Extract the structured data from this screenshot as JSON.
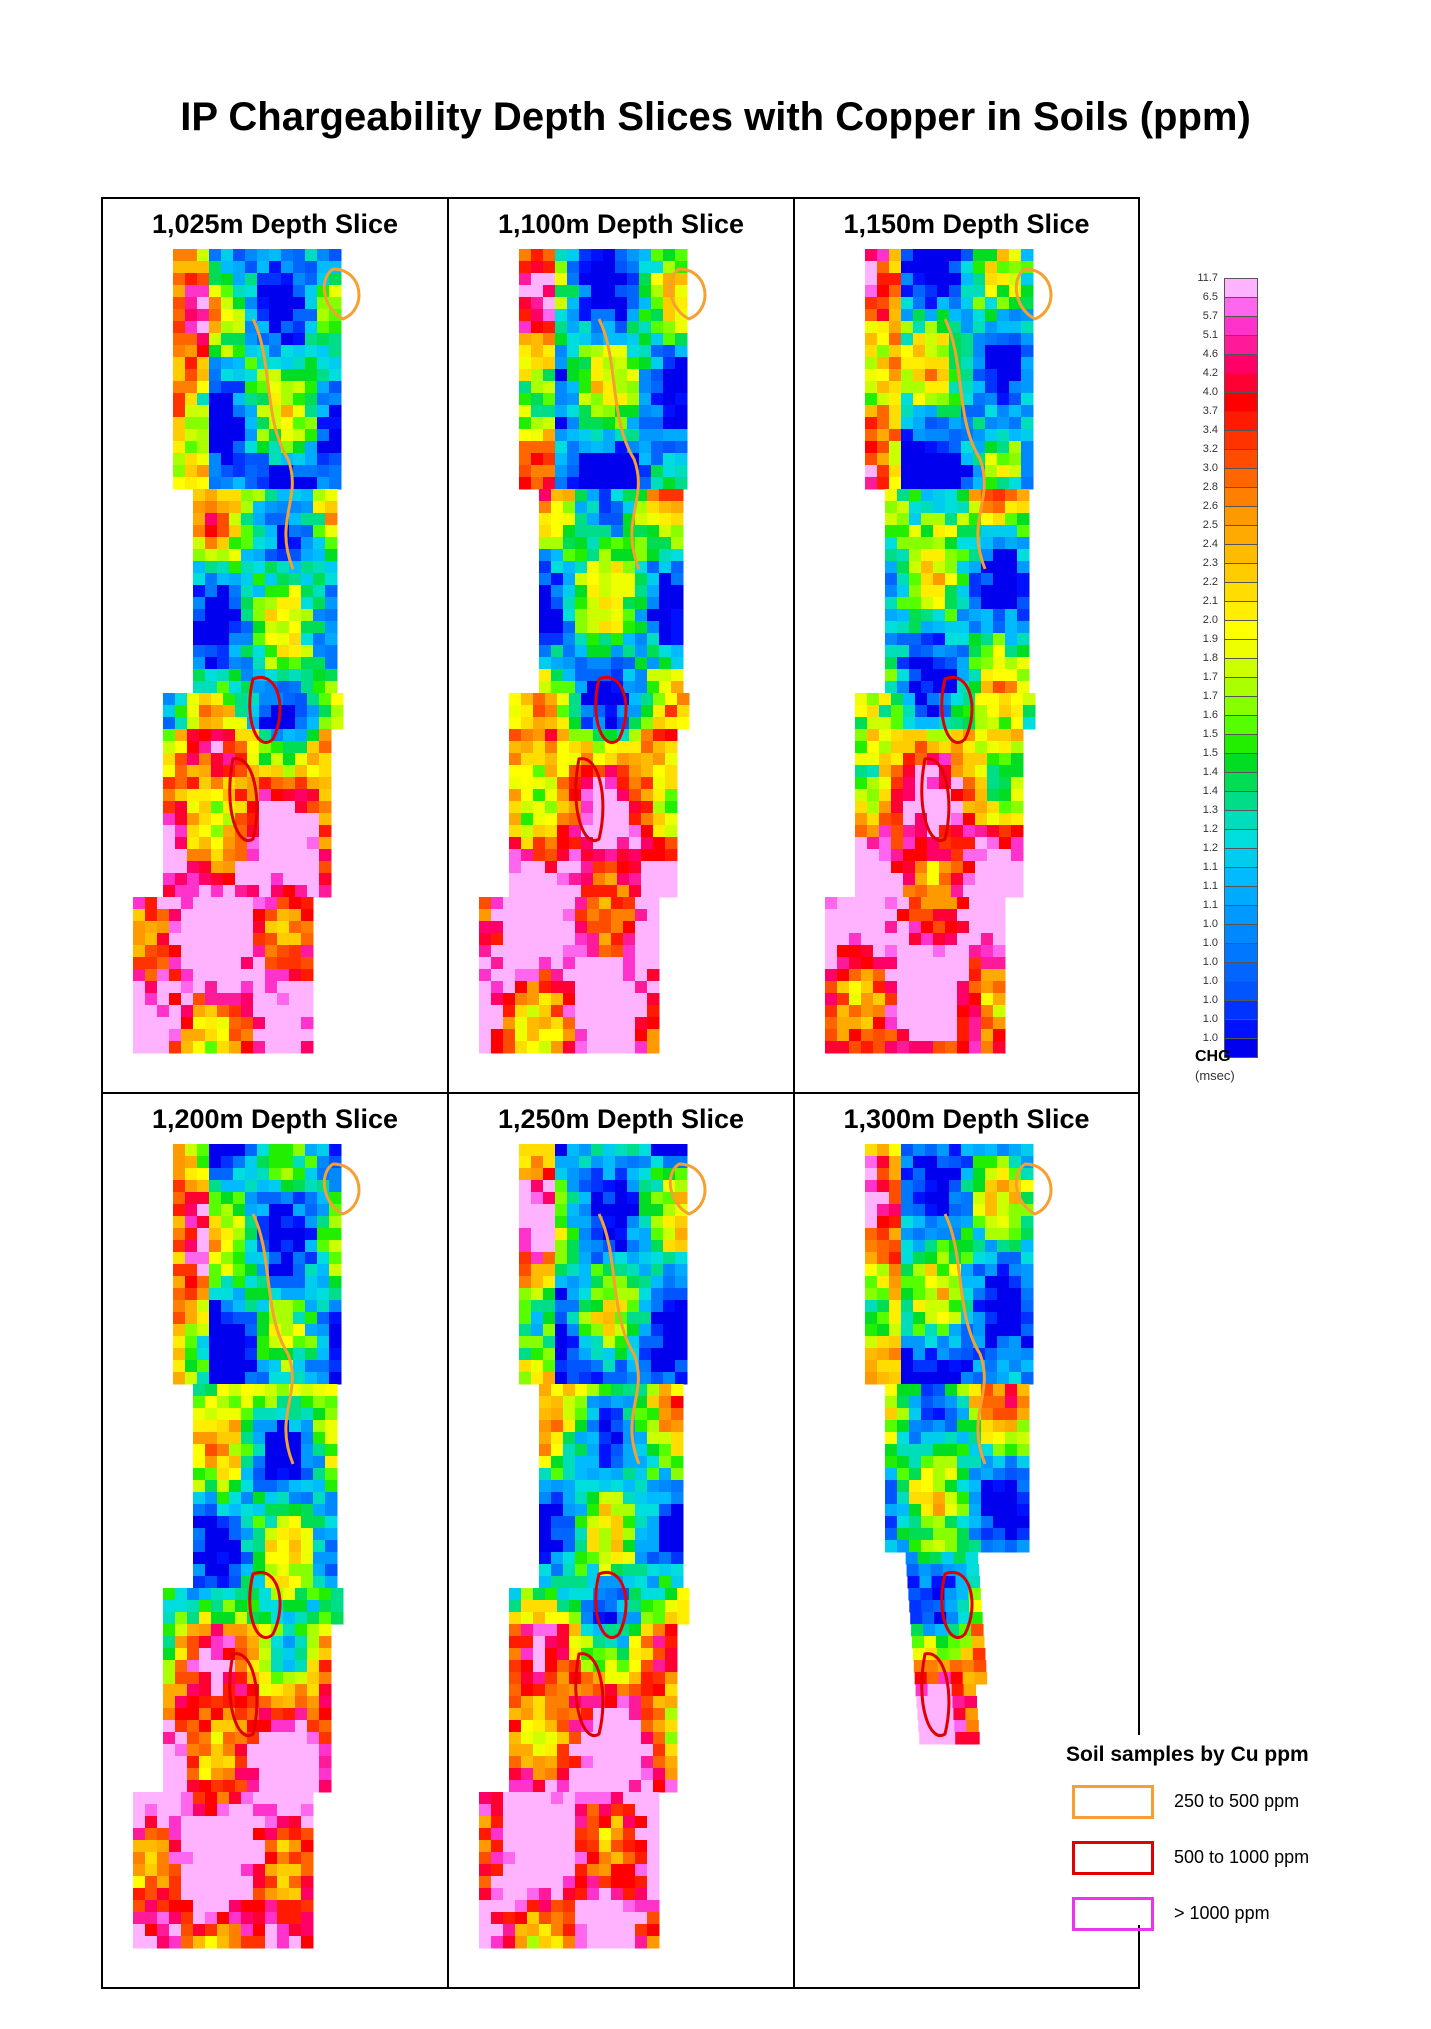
{
  "title": "IP Chargeability Depth Slices with Copper in Soils (ppm)",
  "panels": [
    {
      "label": "1,025m Depth Slice"
    },
    {
      "label": "1,100m Depth Slice"
    },
    {
      "label": "1,150m Depth Slice"
    },
    {
      "label": "1,200m Depth Slice"
    },
    {
      "label": "1,250m Depth Slice"
    },
    {
      "label": "1,300m Depth Slice"
    }
  ],
  "color_scale": {
    "ticks": [
      "11.7",
      "6.5",
      "5.7",
      "5.1",
      "4.6",
      "4.2",
      "4.0",
      "3.7",
      "3.4",
      "3.2",
      "3.0",
      "2.8",
      "2.6",
      "2.5",
      "2.4",
      "2.3",
      "2.2",
      "2.1",
      "2.0",
      "1.9",
      "1.8",
      "1.7",
      "1.7",
      "1.6",
      "1.5",
      "1.5",
      "1.4",
      "1.4",
      "1.3",
      "1.2",
      "1.2",
      "1.1",
      "1.1",
      "1.1",
      "1.0",
      "1.0",
      "1.0",
      "1.0",
      "1.0",
      "1.0",
      "1.0"
    ],
    "colors": [
      "#ffb3ff",
      "#ff66ee",
      "#ff33cc",
      "#ff1a99",
      "#ff0066",
      "#ff0033",
      "#ff0000",
      "#ff1a00",
      "#ff3300",
      "#ff4d00",
      "#ff6600",
      "#ff8000",
      "#ff9900",
      "#ffaa00",
      "#ffbb00",
      "#ffcc00",
      "#ffdd00",
      "#ffee00",
      "#ffff00",
      "#eeff00",
      "#ccff00",
      "#aaff00",
      "#88ff00",
      "#55ff00",
      "#22ee00",
      "#00dd22",
      "#00dd55",
      "#00dd88",
      "#00ddbb",
      "#00dddd",
      "#00ccee",
      "#00bbff",
      "#00aaff",
      "#0099ff",
      "#0088ff",
      "#0077ff",
      "#0066ff",
      "#0055ff",
      "#0033ff",
      "#0011ff",
      "#0000ee"
    ],
    "unit_label": "CHG",
    "unit": "(msec)"
  },
  "legend": {
    "title": "Soil samples by Cu ppm",
    "items": [
      {
        "label": "250 to 500 ppm",
        "color": "#f5a030"
      },
      {
        "label": "500 to 1000 ppm",
        "color": "#e00000"
      },
      {
        "label": "> 1000 ppm",
        "color": "#ee33ee"
      }
    ]
  }
}
